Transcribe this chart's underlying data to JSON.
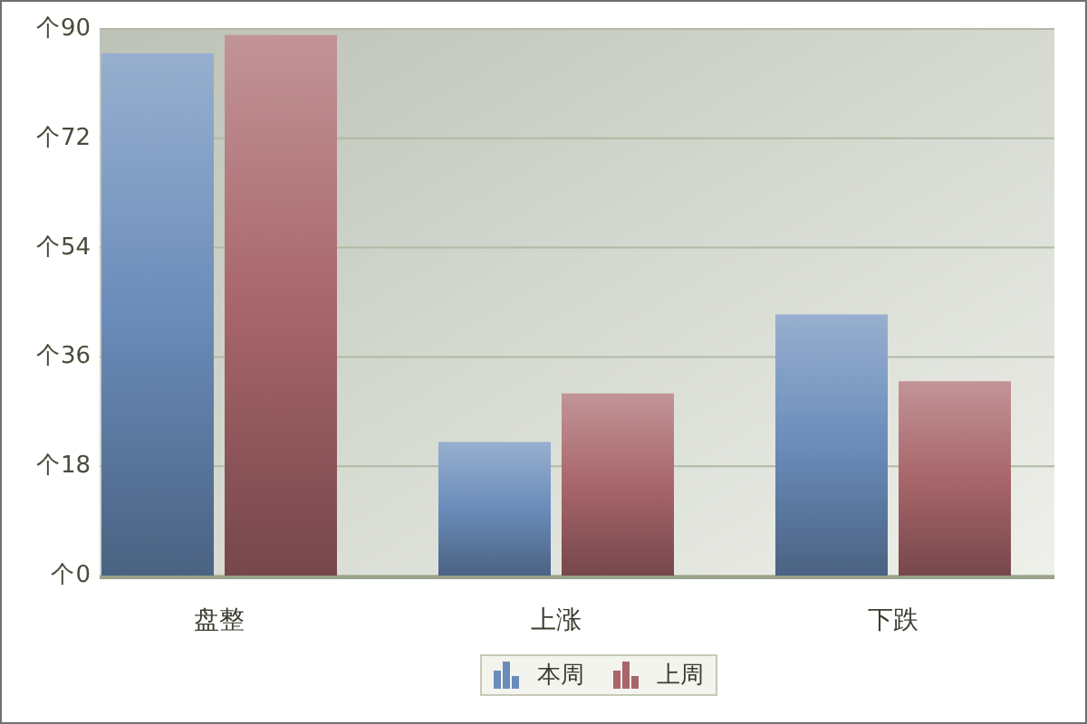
{
  "chart_data": {
    "type": "bar",
    "categories": [
      "盘整",
      "上涨",
      "下跌"
    ],
    "series": [
      {
        "name": "本周",
        "color": "#6a8cba",
        "values": [
          86,
          22,
          43
        ]
      },
      {
        "name": "上周",
        "color": "#a8666b",
        "values": [
          89,
          30,
          32
        ]
      }
    ],
    "ylabel": "个",
    "ylim": [
      0,
      90
    ],
    "yticks": [
      0,
      18,
      36,
      54,
      72,
      90
    ],
    "grid": "y",
    "legend": "bottom"
  }
}
